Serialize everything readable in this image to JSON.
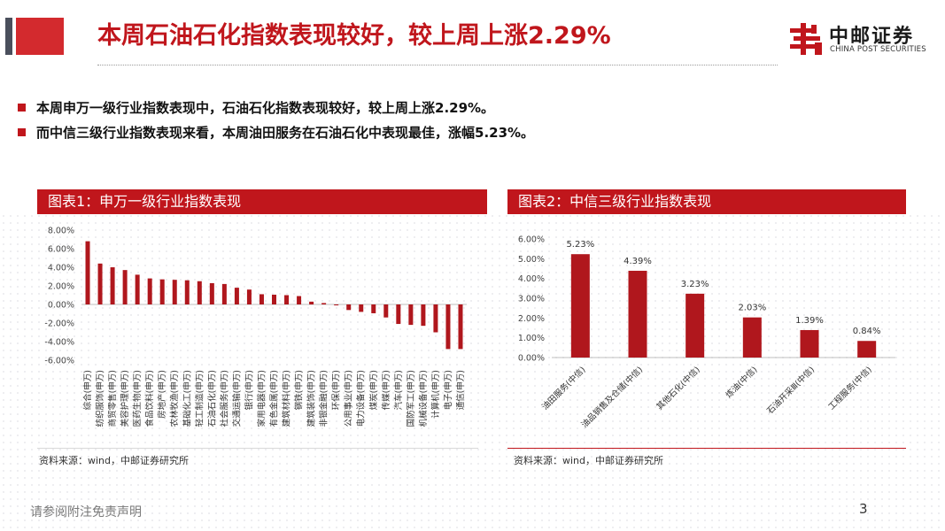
{
  "header": {
    "title": "本周石油石化指数表现较好，较上周上涨2.29%",
    "logo_cn": "中邮证券",
    "logo_en": "CHINA POST SECURITIES"
  },
  "bullets": [
    "本周申万一级行业指数表现中，石油石化指数表现较好，较上周上涨2.29%。",
    "而中信三级行业指数表现来看，本周油田服务在石油石化中表现最佳，涨幅5.23%。"
  ],
  "panels": {
    "left_title": "图表1：申万一级行业指数表现",
    "right_title": "图表2：中信三级行业指数表现",
    "left_source": "资料来源：wind，中邮证券研究所",
    "right_source": "资料来源：wind，中邮证券研究所"
  },
  "footer": {
    "note": "请参阅附注免责声明",
    "page": "3"
  },
  "colors": {
    "accent": "#c0161c",
    "bar": "#b0171d"
  },
  "chart_data": [
    {
      "type": "bar",
      "title": "图表1：申万一级行业指数表现",
      "categories": [
        "综合(申万)",
        "纺织服饰(申万)",
        "商贸零售(申万)",
        "美容护理(申万)",
        "医药生物(申万)",
        "食品饮料(申万)",
        "房地产(申万)",
        "农林牧渔(申万)",
        "基础化工(申万)",
        "轻工制造(申万)",
        "石油石化(申万)",
        "社会服务(申万)",
        "交通运输(申万)",
        "银行(申万)",
        "家用电器(申万)",
        "有色金属(申万)",
        "建筑材料(申万)",
        "钢铁(申万)",
        "建筑装饰(申万)",
        "非银金融(申万)",
        "环保(申万)",
        "公用事业(申万)",
        "电力设备(申万)",
        "煤炭(申万)",
        "传媒(申万)",
        "汽车(申万)",
        "国防军工(申万)",
        "机械设备(申万)",
        "计算机(申万)",
        "电子(申万)",
        "通信(申万)"
      ],
      "values": [
        6.8,
        4.4,
        4.0,
        3.7,
        3.2,
        2.8,
        2.7,
        2.65,
        2.6,
        2.5,
        2.29,
        2.2,
        1.8,
        1.6,
        1.1,
        1.05,
        1.0,
        0.9,
        0.3,
        0.15,
        -0.1,
        -0.6,
        -0.8,
        -0.95,
        -1.4,
        -2.1,
        -2.2,
        -2.3,
        -3.0,
        -4.8,
        -4.8
      ],
      "yticks": [
        "8.00%",
        "6.00%",
        "4.00%",
        "2.00%",
        "0.00%",
        "-2.00%",
        "-4.00%",
        "-6.00%"
      ],
      "ylim": [
        -6,
        8
      ]
    },
    {
      "type": "bar",
      "title": "图表2：中信三级行业指数表现",
      "categories": [
        "油田服务(中信)",
        "油品销售及仓储(中信)",
        "其他石化(中信)",
        "炼油(中信)",
        "石油开采Ⅲ(中信)",
        "工程服务(中信)"
      ],
      "values": [
        5.23,
        4.39,
        3.23,
        2.03,
        1.39,
        0.84
      ],
      "data_labels": [
        "5.23%",
        "4.39%",
        "3.23%",
        "2.03%",
        "1.39%",
        "0.84%"
      ],
      "yticks": [
        "6.00%",
        "5.00%",
        "4.00%",
        "3.00%",
        "2.00%",
        "1.00%",
        "0.00%"
      ],
      "ylim": [
        0,
        6
      ]
    }
  ]
}
